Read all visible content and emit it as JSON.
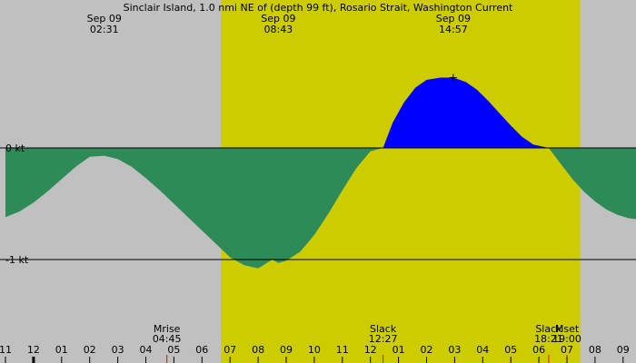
{
  "chart_data": {
    "type": "area",
    "title": "Sinclair Island, 1.0 nmi NE of (depth 99 ft), Rosario Strait, Washington Current",
    "xlabel": "",
    "ylabel": "",
    "unit": "kt",
    "x_range_hours": [
      -1.0,
      21.5
    ],
    "y_range": [
      -1.75,
      1.3
    ],
    "ylabels": [
      {
        "value": 0,
        "label": "0 kt"
      },
      {
        "value": -1,
        "label": "-1 kt"
      }
    ],
    "x_ticks": [
      {
        "hour": -1,
        "label": "11"
      },
      {
        "hour": 0,
        "label": "12"
      },
      {
        "hour": 1,
        "label": "01"
      },
      {
        "hour": 2,
        "label": "02"
      },
      {
        "hour": 3,
        "label": "03"
      },
      {
        "hour": 4,
        "label": "04"
      },
      {
        "hour": 5,
        "label": "05"
      },
      {
        "hour": 6,
        "label": "06"
      },
      {
        "hour": 7,
        "label": "07"
      },
      {
        "hour": 8,
        "label": "08"
      },
      {
        "hour": 9,
        "label": "09"
      },
      {
        "hour": 10,
        "label": "10"
      },
      {
        "hour": 11,
        "label": "11"
      },
      {
        "hour": 12,
        "label": "12"
      },
      {
        "hour": 13,
        "label": "01"
      },
      {
        "hour": 14,
        "label": "02"
      },
      {
        "hour": 15,
        "label": "03"
      },
      {
        "hour": 16,
        "label": "04"
      },
      {
        "hour": 17,
        "label": "05"
      },
      {
        "hour": 18,
        "label": "06"
      },
      {
        "hour": 19,
        "label": "07"
      },
      {
        "hour": 20,
        "label": "08"
      },
      {
        "hour": 21,
        "label": "09"
      }
    ],
    "daylight": {
      "start_hour": 6.68,
      "end_hour": 19.47
    },
    "series": [
      {
        "x": [
          -1.0,
          -0.5,
          0.0,
          0.5,
          1.0,
          1.5,
          2.0,
          2.52,
          3.0,
          3.5,
          4.0,
          4.5,
          5.0,
          5.5,
          6.0,
          6.5,
          7.0,
          7.5,
          8.0,
          8.5,
          8.72,
          9.0,
          9.5,
          10.0,
          10.5,
          11.0,
          11.5,
          12.0,
          12.45,
          12.8,
          13.2,
          13.6,
          14.0,
          14.5,
          14.95,
          15.4,
          15.8,
          16.2,
          16.6,
          17.0,
          17.4,
          17.8,
          18.35,
          18.8,
          19.2,
          19.6,
          20.0,
          20.4,
          20.8,
          21.2,
          21.5
        ],
        "y": [
          -0.62,
          -0.57,
          -0.49,
          -0.39,
          -0.28,
          -0.17,
          -0.08,
          -0.07,
          -0.1,
          -0.17,
          -0.27,
          -0.38,
          -0.5,
          -0.62,
          -0.74,
          -0.86,
          -0.98,
          -1.05,
          -1.08,
          -1.0,
          -1.03,
          -1.01,
          -0.93,
          -0.78,
          -0.59,
          -0.38,
          -0.18,
          -0.03,
          0.0,
          0.23,
          0.41,
          0.54,
          0.61,
          0.63,
          0.63,
          0.59,
          0.52,
          0.42,
          0.31,
          0.2,
          0.1,
          0.03,
          0.0,
          -0.15,
          -0.28,
          -0.39,
          -0.48,
          -0.55,
          -0.6,
          -0.63,
          -0.64
        ]
      }
    ],
    "top_events": [
      {
        "hour": 2.52,
        "date": "Sep 09",
        "time": "02:31"
      },
      {
        "hour": 8.72,
        "date": "Sep 09",
        "time": "08:43"
      },
      {
        "hour": 14.95,
        "date": "Sep 09",
        "time": "14:57"
      }
    ],
    "bottom_events": [
      {
        "hour": 4.75,
        "name": "Mrise",
        "time": "04:45",
        "marker_color": "#ff0000"
      },
      {
        "hour": 12.45,
        "name": "Slack",
        "time": "12:27",
        "marker_color": "#ff0000"
      },
      {
        "hour": 18.35,
        "name": "Slack",
        "time": "18:21",
        "marker_color": "#ff0000"
      },
      {
        "hour": 19.0,
        "name": "Mset",
        "time": "19:00",
        "marker_color": "#ff0000"
      }
    ],
    "colors": {
      "night": "#c0c0c0",
      "day": "#cccc00",
      "flood": "#0000ff",
      "ebb": "#2e8b57",
      "line": "#000000"
    }
  }
}
